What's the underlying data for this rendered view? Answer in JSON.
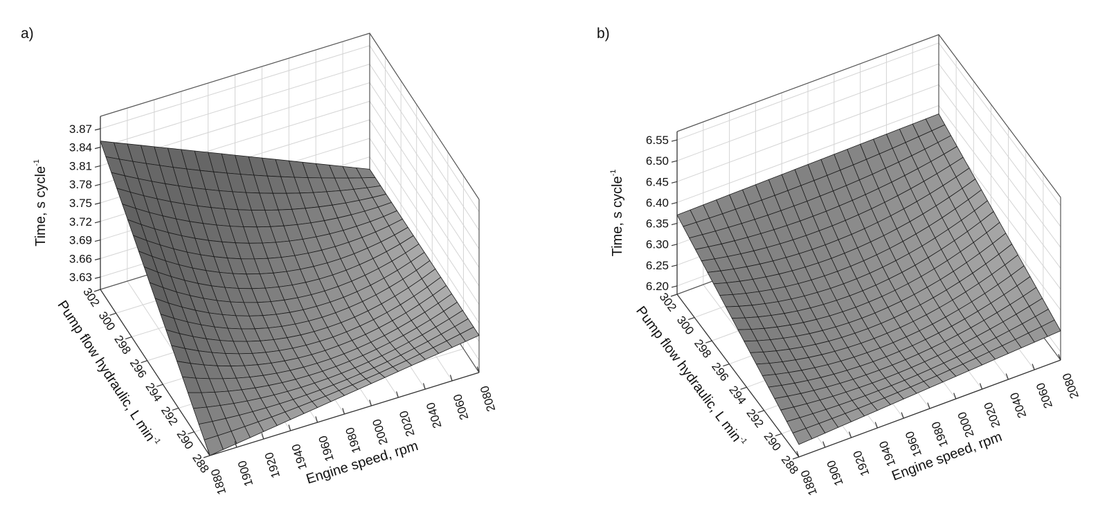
{
  "chart_data": [
    {
      "type": "surface",
      "panel_label": "a)",
      "xlabel": "Engine speed, rpm",
      "ylabel": "Pump flow hydraulic, L min",
      "ylabel_sup": "-1",
      "zlabel": "Time, s cycle",
      "zlabel_sup": "-1",
      "x_ticks": [
        "1880",
        "1900",
        "1920",
        "1940",
        "1960",
        "1980",
        "2000",
        "2020",
        "2040",
        "2060",
        "2080"
      ],
      "y_ticks": [
        "288",
        "290",
        "292",
        "294",
        "296",
        "298",
        "300",
        "302"
      ],
      "z_ticks": [
        "3.63",
        "3.66",
        "3.69",
        "3.72",
        "3.75",
        "3.78",
        "3.81",
        "3.84",
        "3.87"
      ],
      "xlim": [
        1880,
        2080
      ],
      "ylim": [
        288,
        302
      ],
      "zlim": [
        3.61,
        3.89
      ],
      "surface": {
        "corners": {
          "x1880_y288": 3.61,
          "x2080_y288": 3.67,
          "x1880_y302": 3.85,
          "x2080_y302": 3.67,
          "x1980_y295": 3.64
        },
        "model": "quadratic"
      },
      "grid": true
    },
    {
      "type": "surface",
      "panel_label": "b)",
      "xlabel": "Engine speed, rpm",
      "ylabel": "Pump flow hydraulic, L min",
      "ylabel_sup": "-1",
      "zlabel": "Time, s cycle",
      "zlabel_sup": "-1",
      "x_ticks": [
        "1880",
        "1900",
        "1920",
        "1940",
        "1960",
        "1980",
        "2000",
        "2020",
        "2040",
        "2060",
        "2080"
      ],
      "y_ticks": [
        "288",
        "290",
        "292",
        "294",
        "296",
        "298",
        "300",
        "302"
      ],
      "z_ticks": [
        "6.20",
        "6.25",
        "6.30",
        "6.35",
        "6.40",
        "6.45",
        "6.50",
        "6.55"
      ],
      "xlim": [
        1880,
        2080
      ],
      "ylim": [
        288,
        302
      ],
      "zlim": [
        6.18,
        6.57
      ],
      "surface": {
        "corners": {
          "x1880_y288": 6.21,
          "x2080_y288": 6.25,
          "x1880_y302": 6.37,
          "x2080_y302": 6.38,
          "x1980_y295": 6.24
        },
        "model": "quadratic"
      },
      "grid": true
    }
  ]
}
